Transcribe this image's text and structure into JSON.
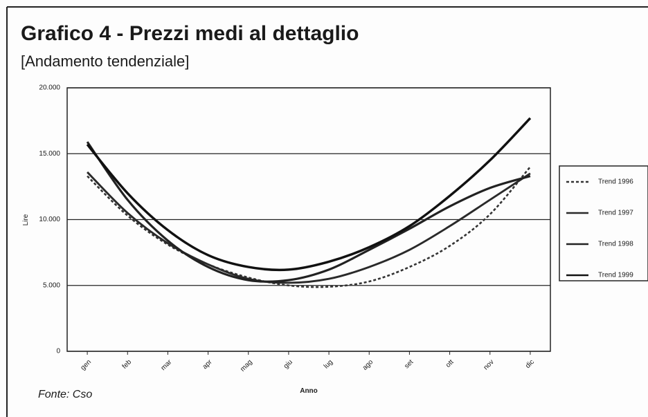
{
  "chart_data": {
    "type": "line",
    "title": "Grafico 4 - Prezzi medi al dettaglio",
    "subtitle": "[Andamento tendenziale]",
    "x_label": "Anno",
    "y_label": "Lire",
    "source": "Fonte: Cso",
    "categories": [
      "gen",
      "feb",
      "mar",
      "apr",
      "mag",
      "giu",
      "lug",
      "ago",
      "set",
      "ott",
      "nov",
      "dic"
    ],
    "series": [
      {
        "name": "Trend 1996",
        "color": "#333333",
        "line_style": "dashed",
        "values": [
          13300,
          10300,
          8100,
          6600,
          5600,
          5000,
          4900,
          5300,
          6400,
          8000,
          10400,
          14000
        ]
      },
      {
        "name": "Trend 1997",
        "color": "#2a2a2a",
        "line_style": "solid",
        "values": [
          13600,
          10500,
          8200,
          6600,
          5500,
          5200,
          5500,
          6400,
          7700,
          9500,
          11500,
          13500
        ]
      },
      {
        "name": "Trend 1998",
        "color": "#222222",
        "line_style": "solid",
        "values": [
          15900,
          11500,
          8400,
          6400,
          5400,
          5400,
          6200,
          7700,
          9300,
          11000,
          12400,
          13300
        ]
      },
      {
        "name": "Trend 1999",
        "color": "#111111",
        "line_style": "solid",
        "values": [
          15700,
          12000,
          9200,
          7300,
          6400,
          6200,
          6800,
          7900,
          9500,
          11800,
          14500,
          17700
        ]
      }
    ],
    "ylim": [
      0,
      20000
    ],
    "yticks": [
      0,
      {
        "value": 5000,
        "label": "5.000"
      },
      {
        "value": 10000,
        "label": "10.000"
      },
      {
        "value": 15000,
        "label": "15.000"
      },
      {
        "value": 20000,
        "label": "20.000"
      }
    ],
    "grid": true,
    "legend": "right"
  }
}
